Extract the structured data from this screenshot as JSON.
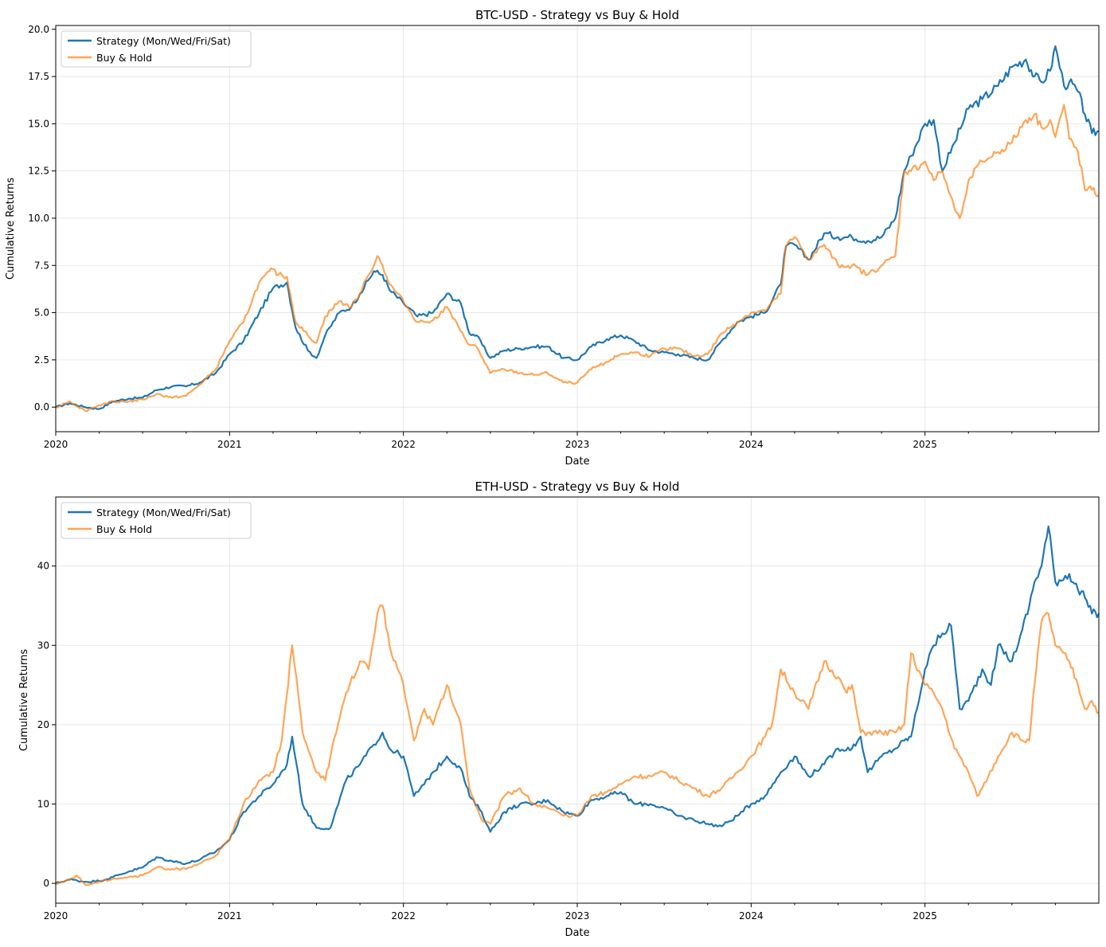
{
  "colors": {
    "strategy": "#1f77b4",
    "buy_hold": "#ff7f0e",
    "grid": "#b0b0b0",
    "axis": "#000000"
  },
  "chart_data": [
    {
      "type": "line",
      "title": "BTC-USD - Strategy vs Buy & Hold",
      "xlabel": "Date",
      "ylabel": "Cumulative Returns",
      "xlim": [
        2020.0,
        2026.0
      ],
      "ylim": [
        -1.3,
        20.2
      ],
      "x_ticks": [
        2020,
        2021,
        2022,
        2023,
        2024,
        2025
      ],
      "x_tick_labels": [
        "2020",
        "2021",
        "2022",
        "2023",
        "2024",
        "2025"
      ],
      "y_ticks": [
        0.0,
        2.5,
        5.0,
        7.5,
        10.0,
        12.5,
        15.0,
        17.5,
        20.0
      ],
      "y_tick_labels": [
        "0.0",
        "2.5",
        "5.0",
        "7.5",
        "10.0",
        "12.5",
        "15.0",
        "17.5",
        "20.0"
      ],
      "grid": true,
      "legend_position": "top-left",
      "series": [
        {
          "name": "Strategy (Mon/Wed/Fri/Sat)",
          "x": [
            2020.0,
            2020.08,
            2020.17,
            2020.25,
            2020.33,
            2020.42,
            2020.5,
            2020.58,
            2020.67,
            2020.75,
            2020.83,
            2020.92,
            2021.0,
            2021.08,
            2021.17,
            2021.25,
            2021.33,
            2021.38,
            2021.45,
            2021.5,
            2021.55,
            2021.63,
            2021.7,
            2021.75,
            2021.83,
            2021.88,
            2021.92,
            2022.0,
            2022.08,
            2022.17,
            2022.25,
            2022.33,
            2022.38,
            2022.42,
            2022.5,
            2022.58,
            2022.67,
            2022.75,
            2022.83,
            2022.92,
            2023.0,
            2023.08,
            2023.17,
            2023.25,
            2023.33,
            2023.42,
            2023.5,
            2023.58,
            2023.67,
            2023.75,
            2023.83,
            2023.92,
            2024.0,
            2024.08,
            2024.17,
            2024.2,
            2024.25,
            2024.33,
            2024.42,
            2024.5,
            2024.58,
            2024.67,
            2024.75,
            2024.83,
            2024.88,
            2024.92,
            2025.0,
            2025.05,
            2025.1,
            2025.17,
            2025.25,
            2025.33,
            2025.42,
            2025.5,
            2025.58,
            2025.63,
            2025.67,
            2025.72,
            2025.75,
            2025.8,
            2025.83,
            2025.88,
            2025.92,
            2025.96,
            2026.0
          ],
          "y": [
            0.0,
            0.2,
            0.0,
            -0.1,
            0.3,
            0.45,
            0.5,
            0.9,
            1.1,
            1.1,
            1.3,
            1.8,
            2.8,
            3.5,
            5.0,
            6.3,
            6.6,
            4.2,
            3.0,
            2.6,
            3.8,
            5.0,
            5.3,
            6.0,
            7.2,
            7.0,
            6.2,
            5.5,
            4.8,
            5.0,
            6.0,
            5.5,
            3.9,
            3.8,
            2.6,
            3.0,
            3.1,
            3.2,
            3.2,
            2.6,
            2.5,
            3.2,
            3.6,
            3.8,
            3.5,
            3.0,
            2.9,
            2.8,
            2.6,
            2.5,
            3.5,
            4.5,
            4.8,
            5.0,
            6.5,
            8.5,
            8.6,
            7.8,
            9.2,
            9.0,
            9.0,
            8.8,
            9.0,
            10.0,
            12.5,
            13.3,
            15.0,
            15.2,
            12.5,
            14.0,
            15.8,
            16.3,
            17.0,
            18.0,
            18.4,
            17.5,
            17.2,
            17.8,
            19.1,
            17.0,
            17.2,
            16.7,
            15.5,
            14.5,
            14.6
          ]
        },
        {
          "name": "Buy & Hold",
          "x": [
            2020.0,
            2020.08,
            2020.17,
            2020.25,
            2020.33,
            2020.42,
            2020.5,
            2020.58,
            2020.67,
            2020.75,
            2020.83,
            2020.92,
            2021.0,
            2021.08,
            2021.17,
            2021.25,
            2021.28,
            2021.33,
            2021.38,
            2021.45,
            2021.5,
            2021.55,
            2021.63,
            2021.7,
            2021.75,
            2021.8,
            2021.85,
            2021.88,
            2021.92,
            2022.0,
            2022.08,
            2022.17,
            2022.25,
            2022.33,
            2022.38,
            2022.42,
            2022.5,
            2022.58,
            2022.67,
            2022.75,
            2022.83,
            2022.92,
            2023.0,
            2023.08,
            2023.17,
            2023.25,
            2023.33,
            2023.42,
            2023.5,
            2023.58,
            2023.67,
            2023.75,
            2023.83,
            2023.92,
            2024.0,
            2024.08,
            2024.17,
            2024.2,
            2024.25,
            2024.33,
            2024.42,
            2024.5,
            2024.58,
            2024.67,
            2024.75,
            2024.83,
            2024.88,
            2024.92,
            2025.0,
            2025.05,
            2025.1,
            2025.17,
            2025.2,
            2025.25,
            2025.33,
            2025.42,
            2025.5,
            2025.58,
            2025.63,
            2025.67,
            2025.72,
            2025.75,
            2025.8,
            2025.83,
            2025.88,
            2025.92,
            2025.96,
            2026.0
          ],
          "y": [
            0.0,
            0.3,
            -0.2,
            0.1,
            0.3,
            0.3,
            0.4,
            0.7,
            0.5,
            0.6,
            1.2,
            2.0,
            3.5,
            4.5,
            6.6,
            7.3,
            7.0,
            6.9,
            4.5,
            3.8,
            3.4,
            4.8,
            5.6,
            5.3,
            6.0,
            7.0,
            8.0,
            7.5,
            6.5,
            5.6,
            4.5,
            4.6,
            5.3,
            4.0,
            3.3,
            3.2,
            1.8,
            2.0,
            1.8,
            1.7,
            1.8,
            1.3,
            1.3,
            2.0,
            2.4,
            2.8,
            2.9,
            2.7,
            3.1,
            3.1,
            2.7,
            2.8,
            3.9,
            4.5,
            5.0,
            5.1,
            6.0,
            8.5,
            9.0,
            7.8,
            8.6,
            7.5,
            7.5,
            7.0,
            7.5,
            8.0,
            12.5,
            12.5,
            13.0,
            12.0,
            12.5,
            10.5,
            10.0,
            12.0,
            13.0,
            13.5,
            14.0,
            15.2,
            15.5,
            14.8,
            15.2,
            14.3,
            16.0,
            14.2,
            13.5,
            11.5,
            11.5,
            11.2
          ]
        }
      ]
    },
    {
      "type": "line",
      "title": "ETH-USD - Strategy vs Buy & Hold",
      "xlabel": "Date",
      "ylabel": "Cumulative Returns",
      "xlim": [
        2020.0,
        2026.0
      ],
      "ylim": [
        -2.5,
        48.7
      ],
      "x_ticks": [
        2020,
        2021,
        2022,
        2023,
        2024,
        2025
      ],
      "x_tick_labels": [
        "2020",
        "2021",
        "2022",
        "2023",
        "2024",
        "2025"
      ],
      "y_ticks": [
        0,
        10,
        20,
        30,
        40
      ],
      "y_tick_labels": [
        "0",
        "10",
        "20",
        "30",
        "40"
      ],
      "grid": true,
      "legend_position": "top-left",
      "series": [
        {
          "name": "Strategy (Mon/Wed/Fri/Sat)",
          "x": [
            2020.0,
            2020.08,
            2020.17,
            2020.25,
            2020.33,
            2020.42,
            2020.5,
            2020.58,
            2020.67,
            2020.75,
            2020.83,
            2020.92,
            2021.0,
            2021.08,
            2021.17,
            2021.25,
            2021.33,
            2021.36,
            2021.42,
            2021.5,
            2021.58,
            2021.67,
            2021.75,
            2021.83,
            2021.88,
            2021.92,
            2022.0,
            2022.06,
            2022.12,
            2022.17,
            2022.25,
            2022.33,
            2022.38,
            2022.45,
            2022.5,
            2022.58,
            2022.67,
            2022.75,
            2022.83,
            2022.92,
            2023.0,
            2023.08,
            2023.17,
            2023.25,
            2023.33,
            2023.42,
            2023.5,
            2023.58,
            2023.67,
            2023.75,
            2023.83,
            2023.92,
            2024.0,
            2024.08,
            2024.17,
            2024.25,
            2024.33,
            2024.42,
            2024.5,
            2024.58,
            2024.63,
            2024.67,
            2024.75,
            2024.83,
            2024.88,
            2024.92,
            2025.0,
            2025.05,
            2025.1,
            2025.15,
            2025.2,
            2025.25,
            2025.33,
            2025.38,
            2025.42,
            2025.5,
            2025.56,
            2025.6,
            2025.63,
            2025.67,
            2025.71,
            2025.75,
            2025.83,
            2025.88,
            2025.92,
            2025.96,
            2026.0
          ],
          "y": [
            0.0,
            0.5,
            0.2,
            0.3,
            0.8,
            1.5,
            2.0,
            3.3,
            2.8,
            2.5,
            3.0,
            4.0,
            5.5,
            9.0,
            11.0,
            12.5,
            15.0,
            18.5,
            10.0,
            7.0,
            7.0,
            13.0,
            15.0,
            17.5,
            19.0,
            17.0,
            16.0,
            11.0,
            12.5,
            14.0,
            16.0,
            14.5,
            11.0,
            9.0,
            6.5,
            9.0,
            10.0,
            10.0,
            10.5,
            9.0,
            8.5,
            10.5,
            11.0,
            11.5,
            10.0,
            10.0,
            9.5,
            8.5,
            8.0,
            7.5,
            7.2,
            8.5,
            10.0,
            11.0,
            14.0,
            16.0,
            13.5,
            15.0,
            17.0,
            17.0,
            18.5,
            14.0,
            16.0,
            17.0,
            18.0,
            18.5,
            27.0,
            30.0,
            31.5,
            32.5,
            22.0,
            23.0,
            27.0,
            25.0,
            30.0,
            28.0,
            32.0,
            35.0,
            38.0,
            40.0,
            45.0,
            38.0,
            39.0,
            37.0,
            36.0,
            34.0,
            34.0
          ]
        },
        {
          "name": "Buy & Hold",
          "x": [
            2020.0,
            2020.08,
            2020.12,
            2020.17,
            2020.25,
            2020.33,
            2020.42,
            2020.5,
            2020.58,
            2020.67,
            2020.75,
            2020.83,
            2020.92,
            2021.0,
            2021.08,
            2021.17,
            2021.25,
            2021.3,
            2021.36,
            2021.42,
            2021.5,
            2021.55,
            2021.58,
            2021.67,
            2021.75,
            2021.8,
            2021.85,
            2021.88,
            2021.92,
            2022.0,
            2022.06,
            2022.12,
            2022.17,
            2022.25,
            2022.33,
            2022.38,
            2022.45,
            2022.5,
            2022.58,
            2022.67,
            2022.75,
            2022.83,
            2022.92,
            2023.0,
            2023.08,
            2023.17,
            2023.25,
            2023.33,
            2023.42,
            2023.5,
            2023.58,
            2023.67,
            2023.75,
            2023.83,
            2023.92,
            2024.0,
            2024.08,
            2024.12,
            2024.17,
            2024.25,
            2024.33,
            2024.42,
            2024.5,
            2024.55,
            2024.58,
            2024.63,
            2024.67,
            2024.75,
            2024.83,
            2024.88,
            2024.92,
            2025.0,
            2025.05,
            2025.1,
            2025.17,
            2025.2,
            2025.25,
            2025.3,
            2025.33,
            2025.42,
            2025.5,
            2025.56,
            2025.6,
            2025.63,
            2025.67,
            2025.71,
            2025.75,
            2025.83,
            2025.88,
            2025.92,
            2025.96,
            2026.0
          ],
          "y": [
            0.0,
            0.4,
            1.0,
            -0.2,
            0.2,
            0.6,
            0.8,
            1.0,
            2.0,
            1.8,
            1.8,
            2.5,
            3.5,
            5.5,
            10.0,
            13.0,
            14.0,
            18.0,
            30.0,
            19.0,
            14.0,
            13.0,
            16.0,
            24.0,
            28.0,
            27.0,
            34.0,
            35.0,
            30.0,
            25.0,
            18.0,
            22.0,
            20.0,
            25.0,
            20.0,
            12.0,
            8.0,
            7.5,
            11.0,
            12.0,
            10.0,
            9.5,
            8.5,
            8.5,
            11.0,
            11.5,
            12.5,
            13.5,
            13.5,
            14.0,
            13.0,
            12.0,
            11.0,
            12.0,
            14.0,
            16.0,
            18.5,
            20.0,
            27.0,
            24.0,
            22.0,
            28.0,
            26.0,
            24.0,
            25.0,
            19.0,
            19.0,
            19.0,
            19.0,
            20.0,
            29.0,
            25.0,
            24.0,
            22.0,
            17.0,
            16.0,
            14.0,
            11.0,
            12.0,
            16.0,
            19.0,
            18.0,
            18.0,
            25.0,
            33.0,
            34.0,
            30.0,
            28.0,
            25.0,
            22.0,
            23.0,
            21.5
          ]
        }
      ]
    }
  ]
}
